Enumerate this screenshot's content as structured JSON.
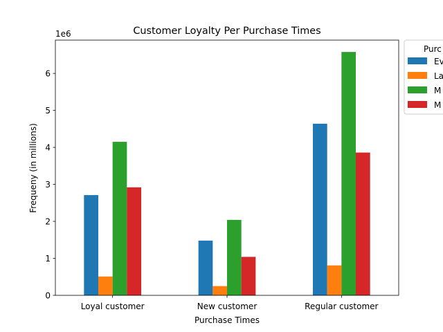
{
  "chart_data": {
    "type": "bar",
    "title": "Customer Loyalty Per Purchase Times",
    "xlabel": "Purchase Times",
    "ylabel": "Frequeny (in millions)",
    "y_offset_label": "1e6",
    "ylim": [
      0,
      6900000
    ],
    "yticks": [
      0,
      1000000,
      2000000,
      3000000,
      4000000,
      5000000,
      6000000
    ],
    "ytick_labels": [
      "0",
      "1",
      "2",
      "3",
      "4",
      "5",
      "6"
    ],
    "categories": [
      "Loyal customer",
      "New customer",
      "Regular customer"
    ],
    "legend": {
      "title": "Purc",
      "placement": "outside upper right (clipped)"
    },
    "series": [
      {
        "name": "Ev",
        "color": "#1f77b4",
        "values": [
          2710000,
          1480000,
          4640000
        ]
      },
      {
        "name": "La",
        "color": "#ff7f0e",
        "values": [
          510000,
          250000,
          810000
        ]
      },
      {
        "name": "M",
        "color": "#2ca02c",
        "values": [
          4150000,
          2040000,
          6580000
        ]
      },
      {
        "name": "M",
        "color": "#d62728",
        "values": [
          2920000,
          1040000,
          3860000
        ]
      }
    ],
    "grid": false
  }
}
